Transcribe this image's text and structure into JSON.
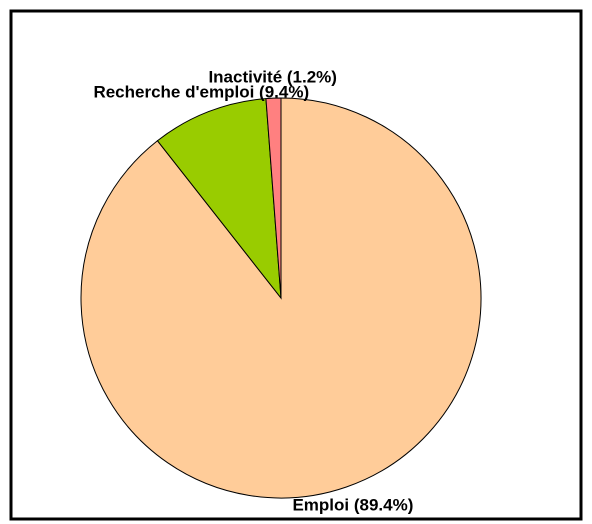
{
  "chart_data": {
    "type": "pie",
    "categories": [
      "Emploi (89.4%)",
      "Recherche d'emploi (9.4%)",
      "Inactivité (1.2%)"
    ],
    "values": [
      89.4,
      9.4,
      1.2
    ],
    "colors": [
      "#ffcc99",
      "#99cc00",
      "#ff8080"
    ]
  }
}
